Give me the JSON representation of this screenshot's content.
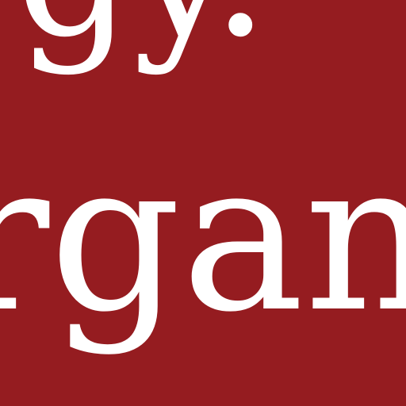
{
  "background_color": "#951c20",
  "text_color": "#ffffff",
  "lines": [
    {
      "text": "gy."
    },
    {
      "text": "rgan"
    }
  ]
}
